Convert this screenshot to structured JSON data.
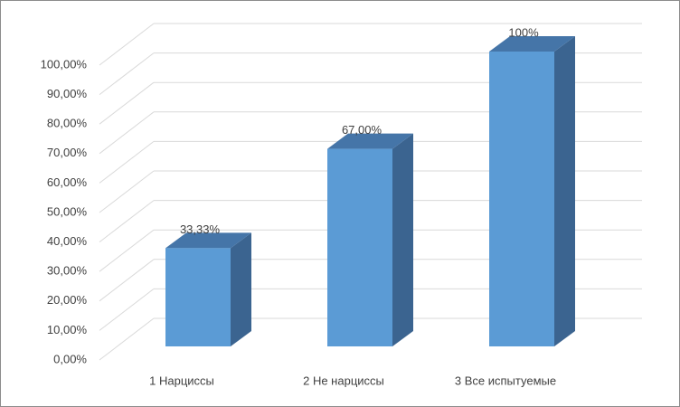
{
  "chart_data": {
    "type": "bar3d",
    "categories": [
      "1 Нарциссы",
      "2 Не нарциссы",
      "3 Все испытуемые"
    ],
    "values": [
      33.33,
      67,
      100
    ],
    "value_labels": [
      "33,33%",
      "67,00%",
      "100%"
    ],
    "color": "#5b9bd5",
    "ylim": [
      0,
      100
    ],
    "yticks": [
      {
        "value": 0,
        "label": "0,00%"
      },
      {
        "value": 10,
        "label": "10,00%"
      },
      {
        "value": 20,
        "label": "20,00%"
      },
      {
        "value": 30,
        "label": "30,00%"
      },
      {
        "value": 40,
        "label": "40,00%"
      },
      {
        "value": 50,
        "label": "50,00%"
      },
      {
        "value": 60,
        "label": "60,00%"
      },
      {
        "value": 70,
        "label": "70,00%"
      },
      {
        "value": 80,
        "label": "80,00%"
      },
      {
        "value": 90,
        "label": "90,00%"
      },
      {
        "value": 100,
        "label": "100,00%"
      }
    ],
    "grid": true
  }
}
